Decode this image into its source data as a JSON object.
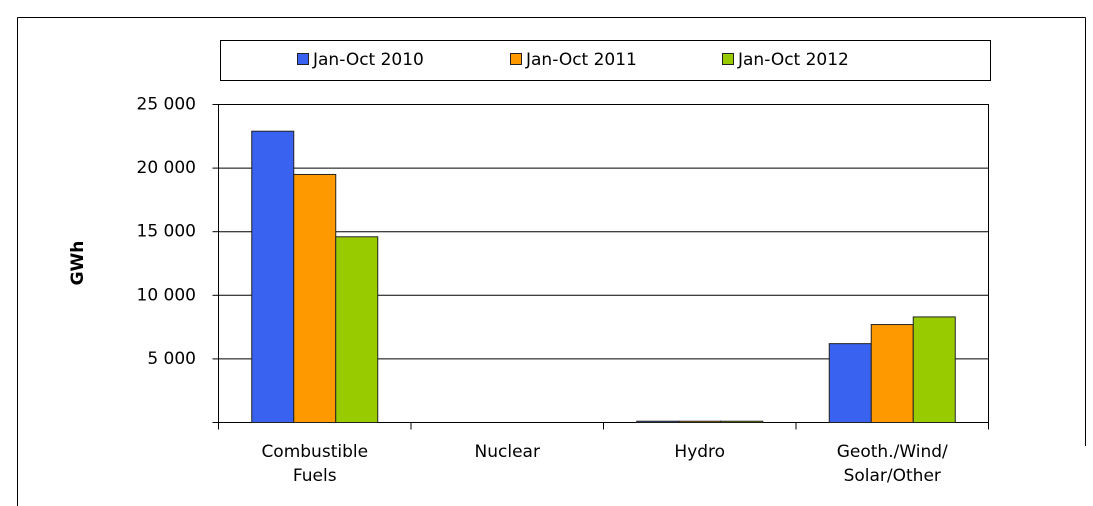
{
  "chart_data": {
    "type": "bar",
    "y_label": "GWh",
    "categories": [
      "Combustible\nFuels",
      "Nuclear",
      "Hydro",
      "Geoth./Wind/\nSolar/Other"
    ],
    "series": [
      {
        "name": "Jan-Oct 2010",
        "color": "#3a62f0",
        "values": [
          22900,
          0,
          100,
          6200
        ]
      },
      {
        "name": "Jan-Oct 2011",
        "color": "#ff9900",
        "values": [
          19500,
          0,
          100,
          7700
        ]
      },
      {
        "name": "Jan-Oct 2012",
        "color": "#99cc00",
        "values": [
          14600,
          0,
          100,
          8300
        ]
      }
    ],
    "ylim": [
      0,
      25000
    ],
    "yticks": [
      {
        "value": 5000,
        "label": "5 000"
      },
      {
        "value": 10000,
        "label": "10 000"
      },
      {
        "value": 15000,
        "label": "15 000"
      },
      {
        "value": 20000,
        "label": "20 000"
      },
      {
        "value": 25000,
        "label": "25 000"
      }
    ],
    "grid": true,
    "legend": "top"
  }
}
